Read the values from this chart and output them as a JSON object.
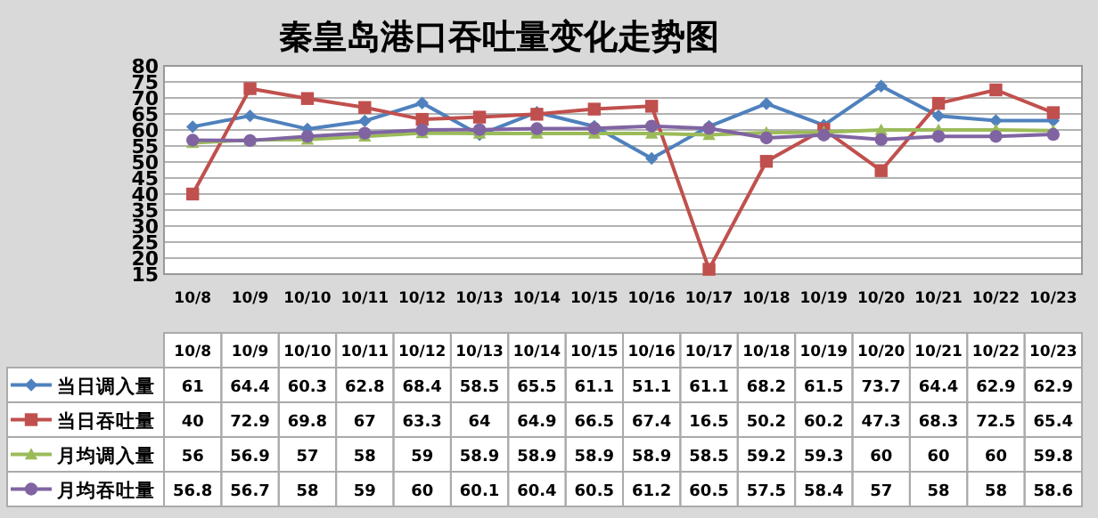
{
  "chart_data": {
    "type": "line",
    "title": "秦皇岛港口吞吐量变化走势图",
    "categories": [
      "10/8",
      "10/9",
      "10/10",
      "10/11",
      "10/12",
      "10/13",
      "10/14",
      "10/15",
      "10/16",
      "10/17",
      "10/18",
      "10/19",
      "10/20",
      "10/21",
      "10/22",
      "10/23"
    ],
    "series": [
      {
        "name": "当日调入量",
        "color": "#4f81bd",
        "marker": "diamond",
        "values": [
          61,
          64.4,
          60.3,
          62.8,
          68.4,
          58.5,
          65.5,
          61.1,
          51.1,
          61.1,
          68.2,
          61.5,
          73.7,
          64.4,
          62.9,
          62.9
        ]
      },
      {
        "name": "当日吞吐量",
        "color": "#c0504d",
        "marker": "square",
        "values": [
          40,
          72.9,
          69.8,
          67,
          63.3,
          64,
          64.9,
          66.5,
          67.4,
          16.5,
          50.2,
          60.2,
          47.3,
          68.3,
          72.5,
          65.4
        ]
      },
      {
        "name": "月均调入量",
        "color": "#9bbb59",
        "marker": "triangle",
        "values": [
          56,
          56.9,
          57,
          58,
          59,
          58.9,
          58.9,
          58.9,
          58.9,
          58.5,
          59.2,
          59.3,
          60,
          60,
          60,
          59.8
        ]
      },
      {
        "name": "月均吞吐量",
        "color": "#8064a2",
        "marker": "circle",
        "values": [
          56.8,
          56.7,
          58,
          59,
          60,
          60.1,
          60.4,
          60.5,
          61.2,
          60.5,
          57.5,
          58.4,
          57,
          58,
          58,
          58.6
        ]
      }
    ],
    "ylim": [
      15,
      80
    ],
    "yticks": [
      15,
      20,
      25,
      30,
      35,
      40,
      45,
      50,
      55,
      60,
      65,
      70,
      75,
      80
    ],
    "grid": "y",
    "legend": "bottom",
    "data_labels": true
  }
}
